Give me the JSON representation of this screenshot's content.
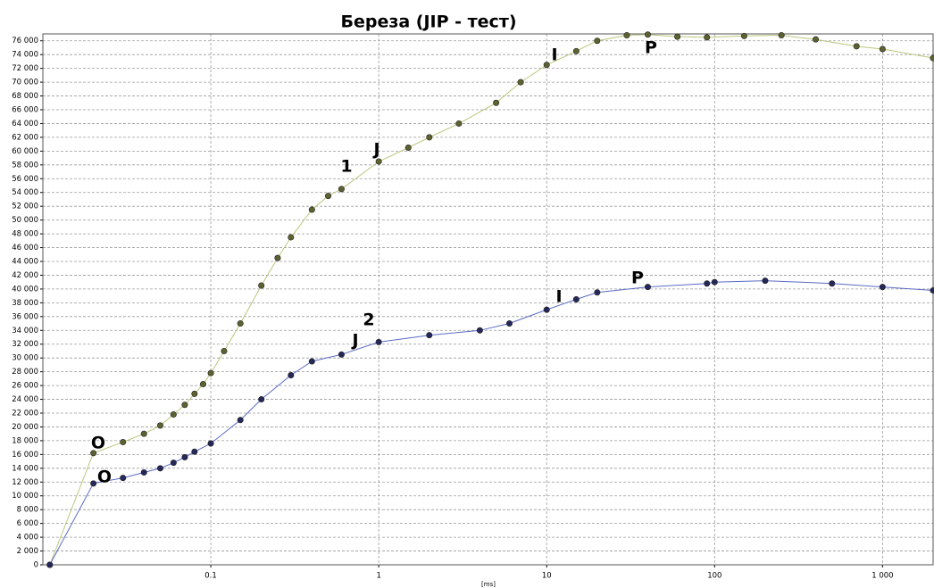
{
  "chart_data": {
    "type": "line",
    "title": "Береза (JIP - тест)",
    "x_label": "[ms]",
    "log_x": true,
    "grid": true,
    "xlim": [
      0.01,
      2000
    ],
    "ylim": [
      0,
      77000
    ],
    "xticks": [
      0.1,
      1,
      10,
      100,
      {
        "value": 1000,
        "label": "1 000"
      }
    ],
    "yticks": [
      0,
      {
        "value": 2000,
        "label": "2 000"
      },
      {
        "value": 4000,
        "label": "4 000"
      },
      {
        "value": 6000,
        "label": "6 000"
      },
      {
        "value": 8000,
        "label": "8 000"
      },
      {
        "value": 10000,
        "label": "10 000"
      },
      {
        "value": 12000,
        "label": "12 000"
      },
      {
        "value": 14000,
        "label": "14 000"
      },
      {
        "value": 16000,
        "label": "16 000"
      },
      {
        "value": 18000,
        "label": "18 000"
      },
      {
        "value": 20000,
        "label": "20 000"
      },
      {
        "value": 22000,
        "label": "22 000"
      },
      {
        "value": 24000,
        "label": "24 000"
      },
      {
        "value": 26000,
        "label": "26 000"
      },
      {
        "value": 28000,
        "label": "28 000"
      },
      {
        "value": 30000,
        "label": "30 000"
      },
      {
        "value": 32000,
        "label": "32 000"
      },
      {
        "value": 34000,
        "label": "34 000"
      },
      {
        "value": 36000,
        "label": "36 000"
      },
      {
        "value": 38000,
        "label": "38 000"
      },
      {
        "value": 40000,
        "label": "40 000"
      },
      {
        "value": 42000,
        "label": "42 000"
      },
      {
        "value": 44000,
        "label": "44 000"
      },
      {
        "value": 46000,
        "label": "46 000"
      },
      {
        "value": 48000,
        "label": "48 000"
      },
      {
        "value": 50000,
        "label": "50 000"
      },
      {
        "value": 52000,
        "label": "52 000"
      },
      {
        "value": 54000,
        "label": "54 000"
      },
      {
        "value": 56000,
        "label": "56 000"
      },
      {
        "value": 58000,
        "label": "58 000"
      },
      {
        "value": 60000,
        "label": "60 000"
      },
      {
        "value": 62000,
        "label": "62 000"
      },
      {
        "value": 64000,
        "label": "64 000"
      },
      {
        "value": 66000,
        "label": "66 000"
      },
      {
        "value": 68000,
        "label": "68 000"
      },
      {
        "value": 70000,
        "label": "70 000"
      },
      {
        "value": 72000,
        "label": "72 000"
      },
      {
        "value": 74000,
        "label": "74 000"
      },
      {
        "value": 76000,
        "label": "76 000"
      }
    ],
    "series": [
      {
        "color": "#5e6230",
        "line_color": "#b8c77c",
        "x": [
          0.011,
          0.02,
          0.03,
          0.04,
          0.05,
          0.06,
          0.07,
          0.08,
          0.09,
          0.1,
          0.12,
          0.15,
          0.2,
          0.25,
          0.3,
          0.4,
          0.5,
          0.6,
          1,
          1.5,
          2,
          3,
          5,
          7,
          10,
          15,
          20,
          30,
          40,
          60,
          90,
          150,
          250,
          400,
          700,
          1000,
          2000
        ],
        "values": [
          0,
          16200,
          17800,
          19000,
          20200,
          21800,
          23200,
          24800,
          26200,
          27800,
          31000,
          35000,
          40500,
          44500,
          47500,
          51500,
          53500,
          54500,
          58500,
          60500,
          62000,
          64000,
          67000,
          70000,
          72500,
          74500,
          76000,
          76800,
          76900,
          76600,
          76500,
          76700,
          76800,
          76200,
          75200,
          74800,
          73500
        ]
      },
      {
        "color": "#24285a",
        "line_color": "#5b6bc4",
        "x": [
          0.011,
          0.02,
          0.03,
          0.04,
          0.05,
          0.06,
          0.07,
          0.08,
          0.1,
          0.15,
          0.2,
          0.3,
          0.4,
          0.6,
          1,
          2,
          4,
          6,
          10,
          15,
          20,
          40,
          90,
          100,
          200,
          500,
          1000,
          2000
        ],
        "values": [
          0,
          11800,
          12600,
          13400,
          14000,
          14800,
          15600,
          16400,
          17600,
          21000,
          24000,
          27500,
          29500,
          30500,
          32300,
          33300,
          34000,
          35000,
          37000,
          38500,
          39500,
          40300,
          40800,
          41000,
          41200,
          40800,
          40300,
          39800
        ]
      }
    ],
    "annotations": [
      "O",
      "O",
      "1",
      "J",
      "2",
      "J",
      "I",
      "P",
      "I",
      "P"
    ]
  }
}
